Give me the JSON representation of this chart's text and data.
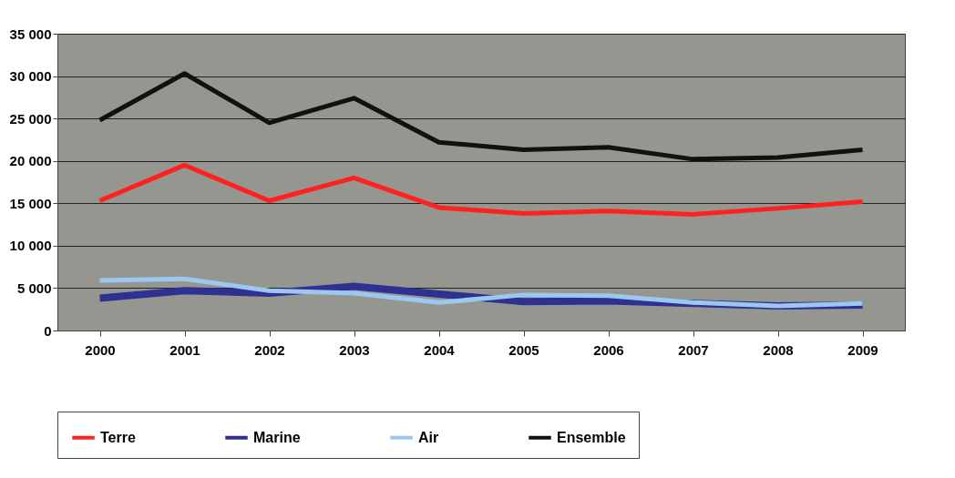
{
  "chart_data": {
    "type": "line",
    "categories": [
      "2000",
      "2001",
      "2002",
      "2003",
      "2004",
      "2005",
      "2006",
      "2007",
      "2008",
      "2009"
    ],
    "series": [
      {
        "name": "Terre",
        "color": "#ff2020",
        "values": [
          15300,
          19500,
          15300,
          18000,
          14500,
          13800,
          14100,
          13700,
          14400,
          15200
        ]
      },
      {
        "name": "Marine",
        "color": "#2e3192",
        "values": [
          3800,
          4700,
          4400,
          5200,
          4300,
          3400,
          3500,
          3200,
          2900,
          3000
        ]
      },
      {
        "name": "Air",
        "color": "#9cc8f0",
        "values": [
          5900,
          6100,
          4700,
          4400,
          3300,
          4200,
          4100,
          3300,
          2900,
          3200
        ]
      },
      {
        "name": "Ensemble",
        "color": "#111111",
        "values": [
          24800,
          30300,
          24500,
          27400,
          22200,
          21300,
          21600,
          20200,
          20400,
          21300
        ]
      }
    ],
    "ylim": [
      0,
      35000
    ],
    "yticks": [
      0,
      {
        "value": 5000,
        "label": "5 000"
      },
      {
        "value": 10000,
        "label": "10 000"
      },
      {
        "value": 15000,
        "label": "15 000"
      },
      {
        "value": 20000,
        "label": "20 000"
      },
      {
        "value": 25000,
        "label": "25 000"
      },
      {
        "value": 30000,
        "label": "30 000"
      },
      {
        "value": 35000,
        "label": "35 000"
      }
    ],
    "grid": "y",
    "legend": "bottom"
  }
}
